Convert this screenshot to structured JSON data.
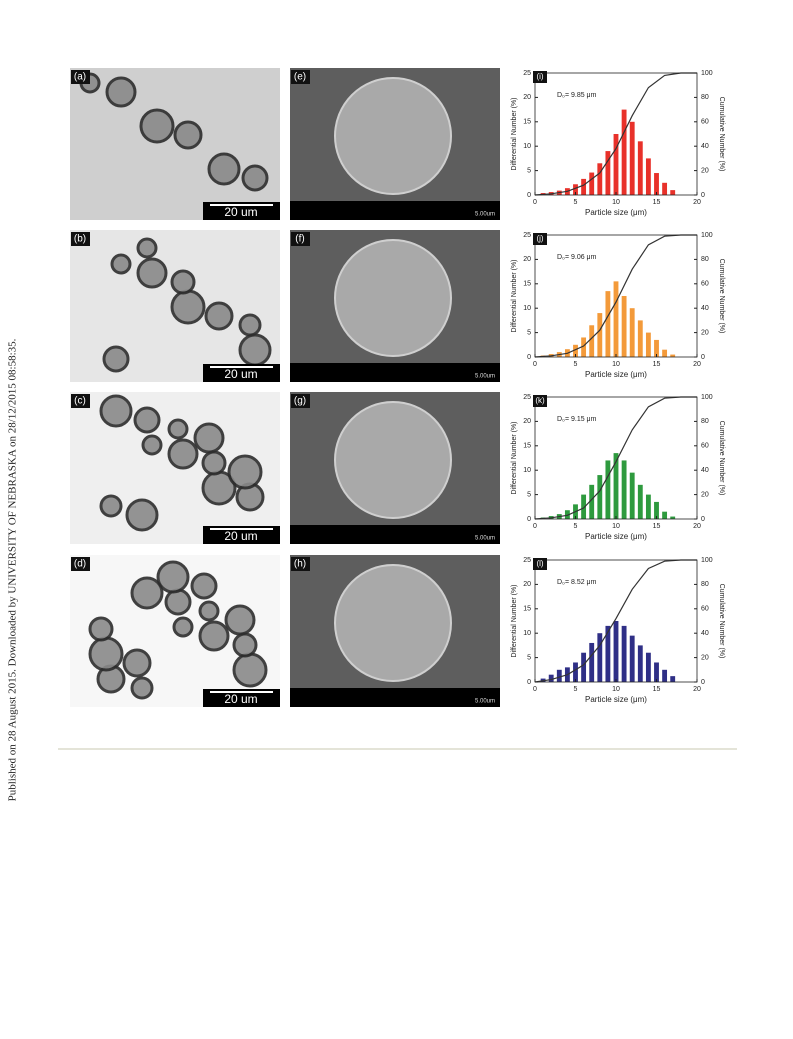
{
  "side_note": "Published on 28 August 2015. Downloaded by UNIVERSITY OF NEBRASKA on 28/12/2015 08:58:35.",
  "panels": [
    {
      "label": "(a)",
      "scale": "20 um"
    },
    {
      "label": "(b)",
      "scale": "20 um"
    },
    {
      "label": "(c)",
      "scale": "20 um"
    },
    {
      "label": "(d)",
      "scale": "20 um"
    },
    {
      "label": "(e)",
      "scale": "5.00um"
    },
    {
      "label": "(f)",
      "scale": "5.00um"
    },
    {
      "label": "(g)",
      "scale": "5.00um"
    },
    {
      "label": "(h)",
      "scale": "5.00um"
    }
  ],
  "chart_data": [
    {
      "type": "bar",
      "panel_label": "(i)",
      "annotation": "D₀= 9.85 μm",
      "xlabel": "Particle size (μm)",
      "ylabel": "Differential Number (%)",
      "y2label": "Cumulative Number (%)",
      "x": [
        1,
        2,
        3,
        4,
        5,
        6,
        7,
        8,
        9,
        10,
        11,
        12,
        13,
        14,
        15,
        16,
        17
      ],
      "values": [
        0.4,
        0.6,
        0.9,
        1.4,
        2.2,
        3.3,
        4.6,
        6.5,
        9,
        12.5,
        17.5,
        15,
        11,
        7.5,
        4.5,
        2.5,
        1
      ],
      "color": "#e8312a",
      "cumulative": {
        "x": [
          0,
          2,
          4,
          6,
          8,
          10,
          12,
          14,
          16,
          18,
          20
        ],
        "values": [
          0,
          1,
          3,
          8,
          18,
          38,
          65,
          88,
          98,
          100,
          100
        ],
        "axis": "y2",
        "color": "#333333"
      },
      "xlim": [
        0,
        20
      ],
      "xticks": [
        0,
        5,
        10,
        15,
        20
      ],
      "ylim": [
        0,
        25
      ],
      "yticks": [
        0,
        5,
        10,
        15,
        20,
        25
      ],
      "y2lim": [
        0,
        100
      ],
      "y2ticks": [
        0,
        20,
        40,
        60,
        80,
        100
      ]
    },
    {
      "type": "bar",
      "panel_label": "(j)",
      "annotation": "D₀= 9.06 μm",
      "xlabel": "Particle size (μm)",
      "ylabel": "Differential Number (%)",
      "y2label": "Cumulative Number (%)",
      "x": [
        1,
        2,
        3,
        4,
        5,
        6,
        7,
        8,
        9,
        10,
        11,
        12,
        13,
        14,
        15,
        16,
        17
      ],
      "values": [
        0.3,
        0.6,
        1,
        1.6,
        2.5,
        4,
        6.5,
        9,
        13.5,
        15.5,
        12.5,
        10,
        7.5,
        5,
        3.5,
        1.5,
        0.5
      ],
      "color": "#f39a3a",
      "cumulative": {
        "x": [
          0,
          2,
          4,
          6,
          8,
          10,
          12,
          14,
          16,
          18,
          20
        ],
        "values": [
          0,
          1,
          3,
          9,
          22,
          45,
          72,
          92,
          99,
          100,
          100
        ],
        "axis": "y2",
        "color": "#333333"
      },
      "xlim": [
        0,
        20
      ],
      "xticks": [
        0,
        5,
        10,
        15,
        20
      ],
      "ylim": [
        0,
        25
      ],
      "yticks": [
        0,
        5,
        10,
        15,
        20,
        25
      ],
      "y2lim": [
        0,
        100
      ],
      "y2ticks": [
        0,
        20,
        40,
        60,
        80,
        100
      ]
    },
    {
      "type": "bar",
      "panel_label": "(k)",
      "annotation": "D₀= 9.15 μm",
      "xlabel": "Particle size (μm)",
      "ylabel": "Differential Number (%)",
      "y2label": "Cumulative Number (%)",
      "x": [
        1,
        2,
        3,
        4,
        5,
        6,
        7,
        8,
        9,
        10,
        11,
        12,
        13,
        14,
        15,
        16,
        17
      ],
      "values": [
        0.3,
        0.6,
        1,
        1.8,
        3,
        5,
        7,
        9,
        12,
        13.5,
        12,
        9.5,
        7,
        5,
        3.5,
        1.5,
        0.5
      ],
      "color": "#2e9a3e",
      "cumulative": {
        "x": [
          0,
          2,
          4,
          6,
          8,
          10,
          12,
          14,
          16,
          18,
          20
        ],
        "values": [
          0,
          1,
          3,
          9,
          23,
          47,
          73,
          92,
          99,
          100,
          100
        ],
        "axis": "y2",
        "color": "#333333"
      },
      "xlim": [
        0,
        20
      ],
      "xticks": [
        0,
        5,
        10,
        15,
        20
      ],
      "ylim": [
        0,
        25
      ],
      "yticks": [
        0,
        5,
        10,
        15,
        20,
        25
      ],
      "y2lim": [
        0,
        100
      ],
      "y2ticks": [
        0,
        20,
        40,
        60,
        80,
        100
      ]
    },
    {
      "type": "bar",
      "panel_label": "(l)",
      "annotation": "D₀= 8.52 μm",
      "xlabel": "Particle size (μm)",
      "ylabel": "Differential Number (%)",
      "y2label": "Cumulative Number (%)",
      "x": [
        1,
        2,
        3,
        4,
        5,
        6,
        7,
        8,
        9,
        10,
        11,
        12,
        13,
        14,
        15,
        16,
        17
      ],
      "values": [
        0.7,
        1.5,
        2.5,
        3,
        4,
        6,
        8,
        10,
        11.5,
        12.5,
        11.5,
        9.5,
        7.5,
        6,
        4,
        2.5,
        1.2
      ],
      "color": "#2f2f86",
      "cumulative": {
        "x": [
          0,
          2,
          4,
          6,
          8,
          10,
          12,
          14,
          16,
          18,
          20
        ],
        "values": [
          0,
          2,
          6,
          14,
          30,
          52,
          76,
          93,
          99,
          100,
          100
        ],
        "axis": "y2",
        "color": "#333333"
      },
      "xlim": [
        0,
        20
      ],
      "xticks": [
        0,
        5,
        10,
        15,
        20
      ],
      "ylim": [
        0,
        25
      ],
      "yticks": [
        0,
        5,
        10,
        15,
        20,
        25
      ],
      "y2lim": [
        0,
        100
      ],
      "y2ticks": [
        0,
        20,
        40,
        60,
        80,
        100
      ]
    }
  ]
}
